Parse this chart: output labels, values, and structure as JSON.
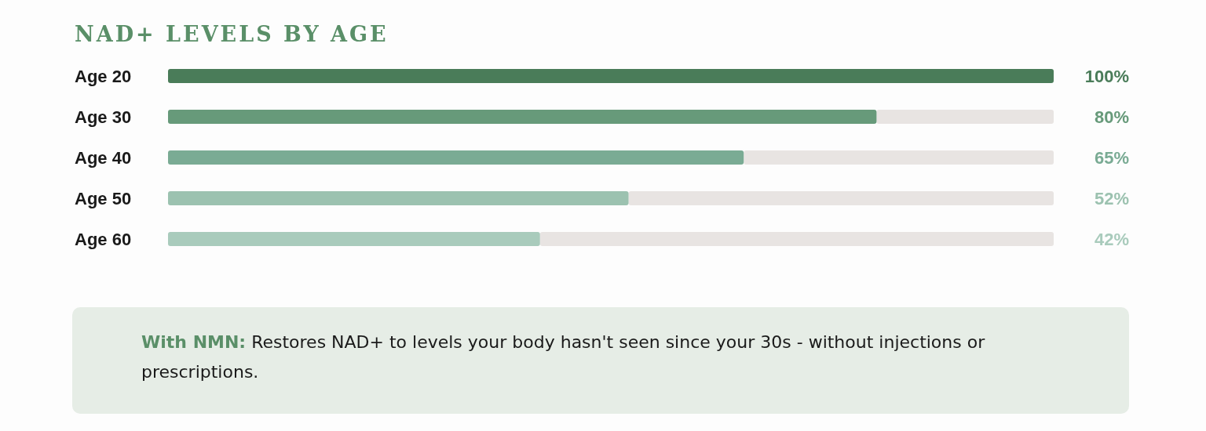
{
  "chart_data": {
    "type": "bar",
    "orientation": "horizontal",
    "title": "NAD+ LEVELS BY AGE",
    "categories": [
      "Age 20",
      "Age 30",
      "Age 40",
      "Age 50",
      "Age 60"
    ],
    "values": [
      100,
      80,
      65,
      52,
      42
    ],
    "colors": [
      "#4a7c59",
      "#679a7a",
      "#7aab94",
      "#9cc2b0",
      "#a9cbbc"
    ],
    "value_labels": [
      "100%",
      "80%",
      "65%",
      "52%",
      "42%"
    ],
    "xlim": [
      0,
      100
    ],
    "tick_labels": "y",
    "annotations": [
      "With NMN: Restores NAD+ to levels your body hasn't seen since your 30s - without injections or prescriptions."
    ]
  }
}
